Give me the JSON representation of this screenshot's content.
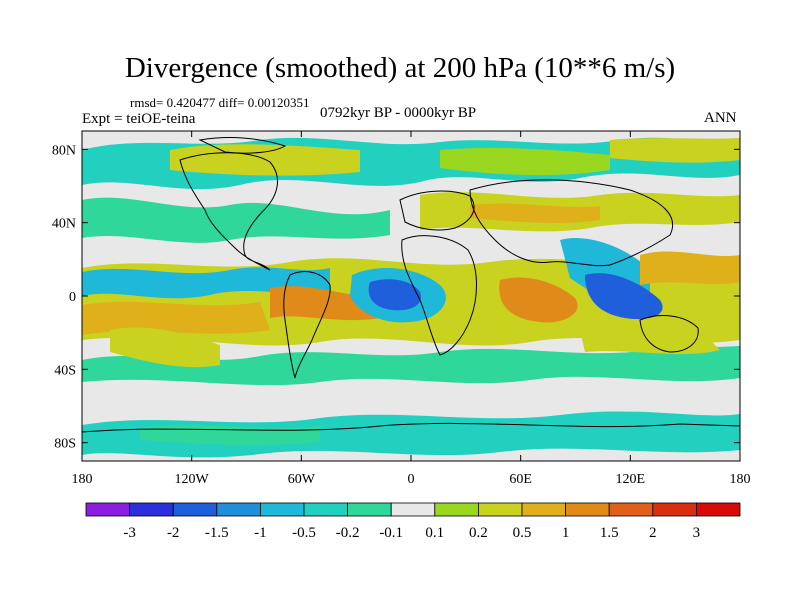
{
  "title": "Divergence (smoothed) at 200 hPa (10**6 m/s)",
  "stats_line": "rmsd= 0.420477 diff= 0.00120351",
  "experiment": "Expt = teiOE-teina",
  "period": "0792kyr BP - 0000kyr BP",
  "season": "ANN",
  "y_ticks": [
    "80N",
    "40N",
    "0",
    "40S",
    "80S"
  ],
  "x_ticks": [
    "180",
    "120W",
    "60W",
    "0",
    "60E",
    "120E",
    "180"
  ],
  "colorbar": {
    "labels": [
      "-3",
      "-2",
      "-1.5",
      "-1",
      "-0.5",
      "-0.2",
      "-0.1",
      "0.1",
      "0.2",
      "0.5",
      "1",
      "1.5",
      "2",
      "3"
    ],
    "colors": [
      "#8a1fe0",
      "#2b2fdc",
      "#1f5fdc",
      "#1f8fdc",
      "#1fb8d8",
      "#22d0c0",
      "#2fd89a",
      "#e8e8e8",
      "#9ad81f",
      "#c8d21f",
      "#e0b01a",
      "#e08a1a",
      "#e0601a",
      "#d8300f",
      "#d80a0a"
    ]
  },
  "field_colors": {
    "ocean_bg": "#e8e8e8",
    "strong_neg": "#1f5fdc",
    "neg": "#1fb8d8",
    "weak_neg": "#2fd89a",
    "weak_pos": "#9ad81f",
    "pos": "#c8d21f",
    "strong_pos": "#e0b01a",
    "very_pos": "#e08a1a"
  }
}
